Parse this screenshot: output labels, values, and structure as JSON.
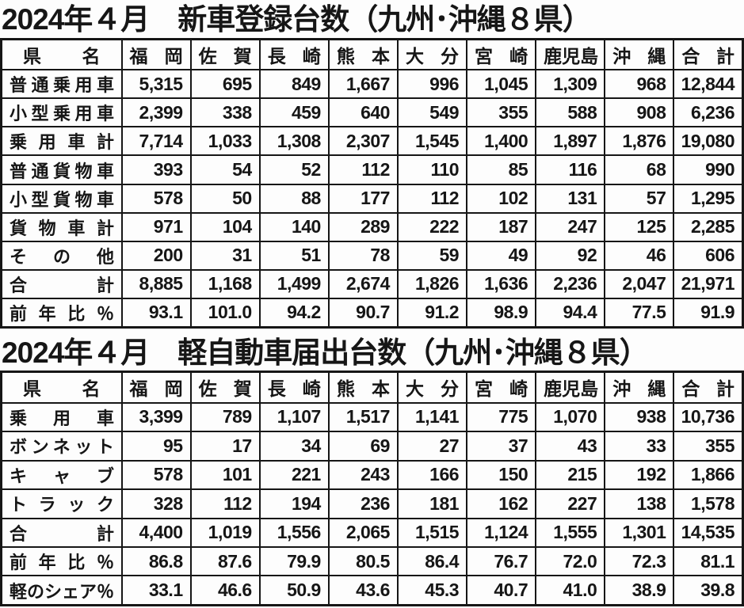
{
  "page": {
    "background_color": "#fdfdfd",
    "text_color": "#161616",
    "border_color": "#161616"
  },
  "tables": [
    {
      "title": "2024年４月　新車登録台数（九州･沖縄８県）",
      "header": [
        "県名",
        "福岡",
        "佐賀",
        "長崎",
        "熊本",
        "大分",
        "宮崎",
        "鹿児島",
        "沖縄",
        "合計"
      ],
      "rows": [
        {
          "label": "普通乗用車",
          "values": [
            "5,315",
            "695",
            "849",
            "1,667",
            "996",
            "1,045",
            "1,309",
            "968",
            "12,844"
          ]
        },
        {
          "label": "小型乗用車",
          "values": [
            "2,399",
            "338",
            "459",
            "640",
            "549",
            "355",
            "588",
            "908",
            "6,236"
          ]
        },
        {
          "label": "乗用車計",
          "values": [
            "7,714",
            "1,033",
            "1,308",
            "2,307",
            "1,545",
            "1,400",
            "1,897",
            "1,876",
            "19,080"
          ]
        },
        {
          "label": "普通貨物車",
          "values": [
            "393",
            "54",
            "52",
            "112",
            "110",
            "85",
            "116",
            "68",
            "990"
          ]
        },
        {
          "label": "小型貨物車",
          "values": [
            "578",
            "50",
            "88",
            "177",
            "112",
            "102",
            "131",
            "57",
            "1,295"
          ]
        },
        {
          "label": "貨物車計",
          "values": [
            "971",
            "104",
            "140",
            "289",
            "222",
            "187",
            "247",
            "125",
            "2,285"
          ]
        },
        {
          "label": "その他",
          "values": [
            "200",
            "31",
            "51",
            "78",
            "59",
            "49",
            "92",
            "46",
            "606"
          ]
        },
        {
          "label": "合計",
          "values": [
            "8,885",
            "1,168",
            "1,499",
            "2,674",
            "1,826",
            "1,636",
            "2,236",
            "2,047",
            "21,971"
          ]
        },
        {
          "label": "前年比％",
          "values": [
            "93.1",
            "101.0",
            "94.2",
            "90.7",
            "91.2",
            "98.9",
            "94.4",
            "77.5",
            "91.9"
          ]
        }
      ]
    },
    {
      "title": "2024年４月　軽自動車届出台数（九州･沖縄８県）",
      "header": [
        "県名",
        "福岡",
        "佐賀",
        "長崎",
        "熊本",
        "大分",
        "宮崎",
        "鹿児島",
        "沖縄",
        "合計"
      ],
      "rows": [
        {
          "label": "乗用車",
          "values": [
            "3,399",
            "789",
            "1,107",
            "1,517",
            "1,141",
            "775",
            "1,070",
            "938",
            "10,736"
          ]
        },
        {
          "label": "ボンネット",
          "values": [
            "95",
            "17",
            "34",
            "69",
            "27",
            "37",
            "43",
            "33",
            "355"
          ]
        },
        {
          "label": "キャブ",
          "values": [
            "578",
            "101",
            "221",
            "243",
            "166",
            "150",
            "215",
            "192",
            "1,866"
          ]
        },
        {
          "label": "トラック",
          "values": [
            "328",
            "112",
            "194",
            "236",
            "181",
            "162",
            "227",
            "138",
            "1,578"
          ]
        },
        {
          "label": "合計",
          "values": [
            "4,400",
            "1,019",
            "1,556",
            "2,065",
            "1,515",
            "1,124",
            "1,555",
            "1,301",
            "14,535"
          ]
        },
        {
          "label": "前年比％",
          "values": [
            "86.8",
            "87.6",
            "79.9",
            "80.5",
            "86.4",
            "76.7",
            "72.0",
            "72.3",
            "81.1"
          ]
        },
        {
          "label": "軽のシェア％",
          "values": [
            "33.1",
            "46.6",
            "50.9",
            "43.6",
            "45.3",
            "40.7",
            "41.0",
            "38.9",
            "39.8"
          ]
        }
      ]
    }
  ]
}
